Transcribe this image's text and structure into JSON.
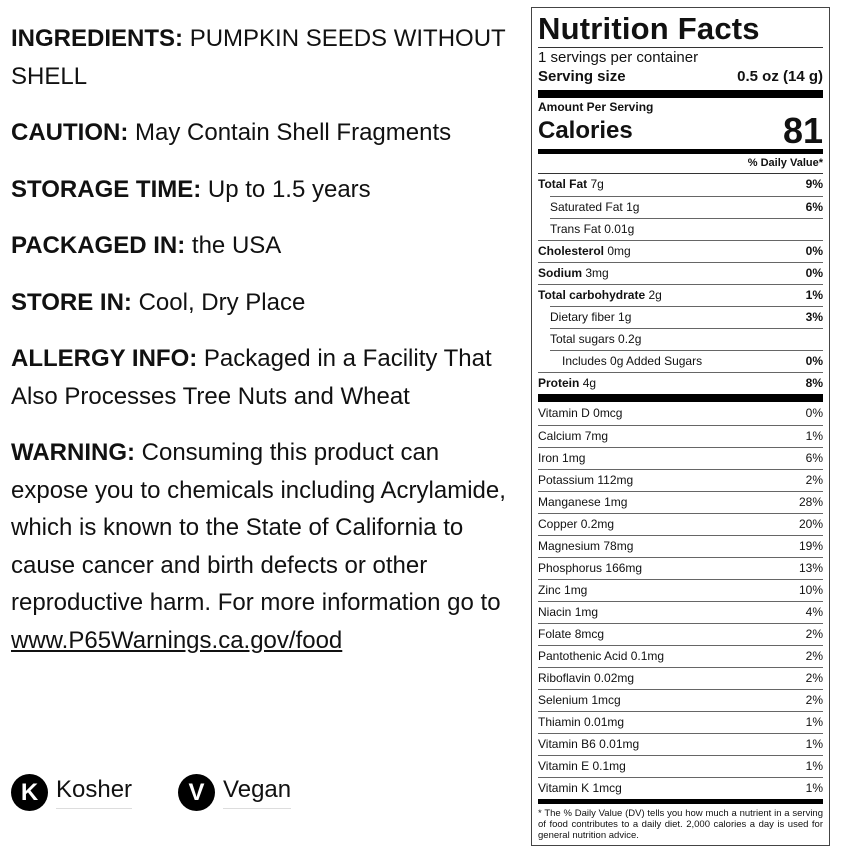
{
  "info": {
    "ingredients": {
      "label": "INGREDIENTS:",
      "value": "PUMPKIN SEEDS WITHOUT SHELL"
    },
    "caution": {
      "label": "CAUTION:",
      "value": "May Contain Shell Fragments"
    },
    "storage_time": {
      "label": "STORAGE TIME:",
      "value": "Up to 1.5 years"
    },
    "packaged_in": {
      "label": "PACKAGED IN:",
      "value": "the USA"
    },
    "store_in": {
      "label": "STORE IN:",
      "value": "Cool, Dry Place"
    },
    "allergy": {
      "label": "ALLERGY INFO:",
      "value": "Packaged in a Facility That Also Processes Tree Nuts and Wheat"
    },
    "warning": {
      "label": "WARNING:",
      "value": "Consuming this product can expose you to chemicals including Acrylamide, which is known to the State of California to cause cancer and birth defects or other reproductive harm. For more information go to",
      "link": "www.P65Warnings.ca.gov/food"
    }
  },
  "badges": [
    {
      "icon": "K",
      "label": "Kosher"
    },
    {
      "icon": "V",
      "label": "Vegan"
    }
  ],
  "nutrition": {
    "title": "Nutrition Facts",
    "servings": "1 servings per container",
    "serving_size_label": "Serving size",
    "serving_size": "0.5 oz (14 g)",
    "amount_per_serving": "Amount Per Serving",
    "calories_label": "Calories",
    "calories": "81",
    "daily_value": "% Daily Value*",
    "nutrients": [
      {
        "name": "Total Fat",
        "amount": "7g",
        "dv": "9%",
        "bold": true,
        "indent": 0
      },
      {
        "name": "Saturated Fat",
        "amount": "1g",
        "dv": "6%",
        "indent": 1
      },
      {
        "name": "Trans Fat",
        "amount": "0.01g",
        "dv": "",
        "indent": 1
      },
      {
        "name": "Cholesterol",
        "amount": "0mg",
        "dv": "0%",
        "bold": true,
        "indent": 0
      },
      {
        "name": "Sodium",
        "amount": "3mg",
        "dv": "0%",
        "bold": true,
        "indent": 0
      },
      {
        "name": "Total carbohydrate",
        "amount": "2g",
        "dv": "1%",
        "bold": true,
        "indent": 0
      },
      {
        "name": "Dietary fiber",
        "amount": "1g",
        "dv": "3%",
        "indent": 1
      },
      {
        "name": "Total sugars",
        "amount": "0.2g",
        "dv": "",
        "indent": 1
      },
      {
        "name": "Includes 0g Added Sugars",
        "amount": "",
        "dv": "0%",
        "indent": 2
      },
      {
        "name": "Protein",
        "amount": "4g",
        "dv": "8%",
        "bold": true,
        "indent": 0
      }
    ],
    "vitamins": [
      {
        "name": "Vitamin D",
        "amount": "0mcg",
        "dv": "0%"
      },
      {
        "name": "Calcium",
        "amount": "7mg",
        "dv": "1%"
      },
      {
        "name": "Iron",
        "amount": "1mg",
        "dv": "6%"
      },
      {
        "name": "Potassium",
        "amount": "112mg",
        "dv": "2%"
      },
      {
        "name": "Manganese",
        "amount": "1mg",
        "dv": "28%"
      },
      {
        "name": "Copper",
        "amount": "0.2mg",
        "dv": "20%"
      },
      {
        "name": "Magnesium",
        "amount": "78mg",
        "dv": "19%"
      },
      {
        "name": "Phosphorus",
        "amount": "166mg",
        "dv": "13%"
      },
      {
        "name": "Zinc",
        "amount": "1mg",
        "dv": "10%"
      },
      {
        "name": "Niacin",
        "amount": "1mg",
        "dv": "4%"
      },
      {
        "name": "Folate",
        "amount": "8mcg",
        "dv": "2%"
      },
      {
        "name": "Pantothenic Acid",
        "amount": "0.1mg",
        "dv": "2%"
      },
      {
        "name": "Riboflavin",
        "amount": "0.02mg",
        "dv": "2%"
      },
      {
        "name": "Selenium",
        "amount": "1mcg",
        "dv": "2%"
      },
      {
        "name": "Thiamin",
        "amount": "0.01mg",
        "dv": "1%"
      },
      {
        "name": "Vitamin B6",
        "amount": "0.01mg",
        "dv": "1%"
      },
      {
        "name": "Vitamin E",
        "amount": "0.1mg",
        "dv": "1%"
      },
      {
        "name": "Vitamin K",
        "amount": "1mcg",
        "dv": "1%"
      }
    ],
    "footnote": "* The % Daily Value (DV) tells you how much a nutrient in a serving of food contributes to a daily diet. 2,000 calories a day is used for general nutrition advice."
  }
}
